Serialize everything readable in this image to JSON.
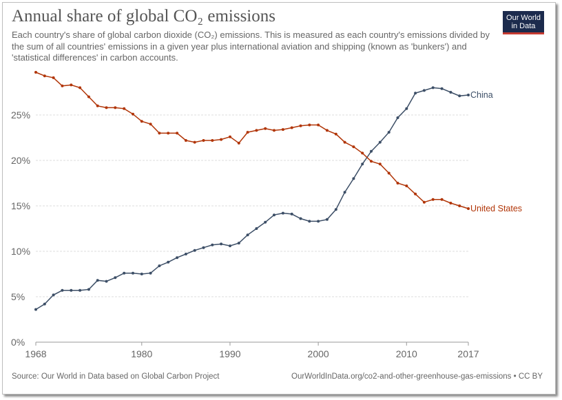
{
  "header": {
    "title": "Annual share of global CO₂ emissions",
    "subtitle": "Each country's share of global carbon dioxide (CO₂) emissions. This is measured as each country's emissions divided by the sum of all countries' emissions in a given year plus international aviation and shipping (known as 'bunkers') and 'statistical differences' in carbon accounts.",
    "logo_line1": "Our World",
    "logo_line2": "in Data"
  },
  "footer": {
    "source": "Source: Our World in Data based on Global Carbon Project",
    "credit": "OurWorldInData.org/co2-and-other-greenhouse-gas-emissions • CC BY"
  },
  "chart_data": {
    "type": "line",
    "title": "Annual share of global CO₂ emissions",
    "xlabel": "",
    "ylabel": "",
    "xlim": [
      1968,
      2017
    ],
    "ylim": [
      0,
      30
    ],
    "x_ticks": [
      1968,
      1980,
      1990,
      2000,
      2010,
      2017
    ],
    "y_ticks": [
      {
        "value": 0,
        "label": "0%"
      },
      {
        "value": 5,
        "label": "5%"
      },
      {
        "value": 10,
        "label": "10%"
      },
      {
        "value": 15,
        "label": "15%"
      },
      {
        "value": 20,
        "label": "20%"
      },
      {
        "value": 25,
        "label": "25%"
      }
    ],
    "grid": "horizontal dashed",
    "legend": "inline labels at line ends",
    "x": [
      1968,
      1969,
      1970,
      1971,
      1972,
      1973,
      1974,
      1975,
      1976,
      1977,
      1978,
      1979,
      1980,
      1981,
      1982,
      1983,
      1984,
      1985,
      1986,
      1987,
      1988,
      1989,
      1990,
      1991,
      1992,
      1993,
      1994,
      1995,
      1996,
      1997,
      1998,
      1999,
      2000,
      2001,
      2002,
      2003,
      2004,
      2005,
      2006,
      2007,
      2008,
      2009,
      2010,
      2011,
      2012,
      2013,
      2014,
      2015,
      2016,
      2017
    ],
    "series": [
      {
        "name": "China",
        "color": "#3c4e66",
        "values": [
          3.6,
          4.2,
          5.2,
          5.7,
          5.7,
          5.7,
          5.8,
          6.8,
          6.7,
          7.1,
          7.6,
          7.6,
          7.5,
          7.6,
          8.4,
          8.8,
          9.3,
          9.7,
          10.1,
          10.4,
          10.7,
          10.8,
          10.6,
          10.9,
          11.8,
          12.5,
          13.2,
          14.0,
          14.2,
          14.1,
          13.6,
          13.3,
          13.3,
          13.5,
          14.6,
          16.5,
          18.0,
          19.6,
          21.0,
          22.0,
          23.1,
          24.7,
          25.7,
          27.4,
          27.7,
          28.0,
          27.9,
          27.5,
          27.1,
          27.2
        ]
      },
      {
        "name": "United States",
        "color": "#b13507",
        "values": [
          29.7,
          29.3,
          29.1,
          28.2,
          28.3,
          28.0,
          27.0,
          26.0,
          25.8,
          25.8,
          25.7,
          25.1,
          24.3,
          24.0,
          23.0,
          23.0,
          23.0,
          22.2,
          22.0,
          22.2,
          22.2,
          22.3,
          22.6,
          21.9,
          23.1,
          23.3,
          23.5,
          23.3,
          23.4,
          23.6,
          23.8,
          23.9,
          23.9,
          23.3,
          22.9,
          22.0,
          21.5,
          20.8,
          19.9,
          19.6,
          18.6,
          17.5,
          17.2,
          16.3,
          15.4,
          15.7,
          15.7,
          15.3,
          15.0,
          14.7
        ]
      }
    ]
  }
}
